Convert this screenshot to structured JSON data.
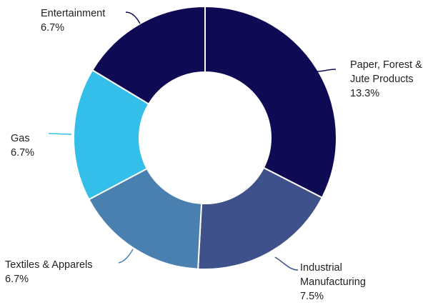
{
  "chart_data": {
    "type": "pie",
    "donut": true,
    "legend": "none",
    "series": [
      {
        "name": "",
        "values": [
          13.3,
          7.5,
          6.7,
          6.7,
          6.7
        ]
      }
    ],
    "categories": [
      "Paper, Forest & Jute Products",
      "Industrial Manufacturing",
      "Textiles & Apparels",
      "Gas",
      "Entertainment"
    ],
    "slices": [
      {
        "label_lines": [
          "Paper, Forest &",
          "Jute Products"
        ],
        "value": 13.3,
        "value_label": "13.3%",
        "color": "#0f0a54"
      },
      {
        "label_lines": [
          "Industrial",
          "Manufacturing"
        ],
        "value": 7.5,
        "value_label": "7.5%",
        "color": "#3e518a"
      },
      {
        "label_lines": [
          "Textiles & Apparels"
        ],
        "value": 6.7,
        "value_label": "6.7%",
        "color": "#4a80b0"
      },
      {
        "label_lines": [
          "Gas"
        ],
        "value": 6.7,
        "value_label": "6.7%",
        "color": "#34bfea"
      },
      {
        "label_lines": [
          "Entertainment"
        ],
        "value": 6.7,
        "value_label": "6.7%",
        "color": "#0f0a54"
      }
    ]
  }
}
